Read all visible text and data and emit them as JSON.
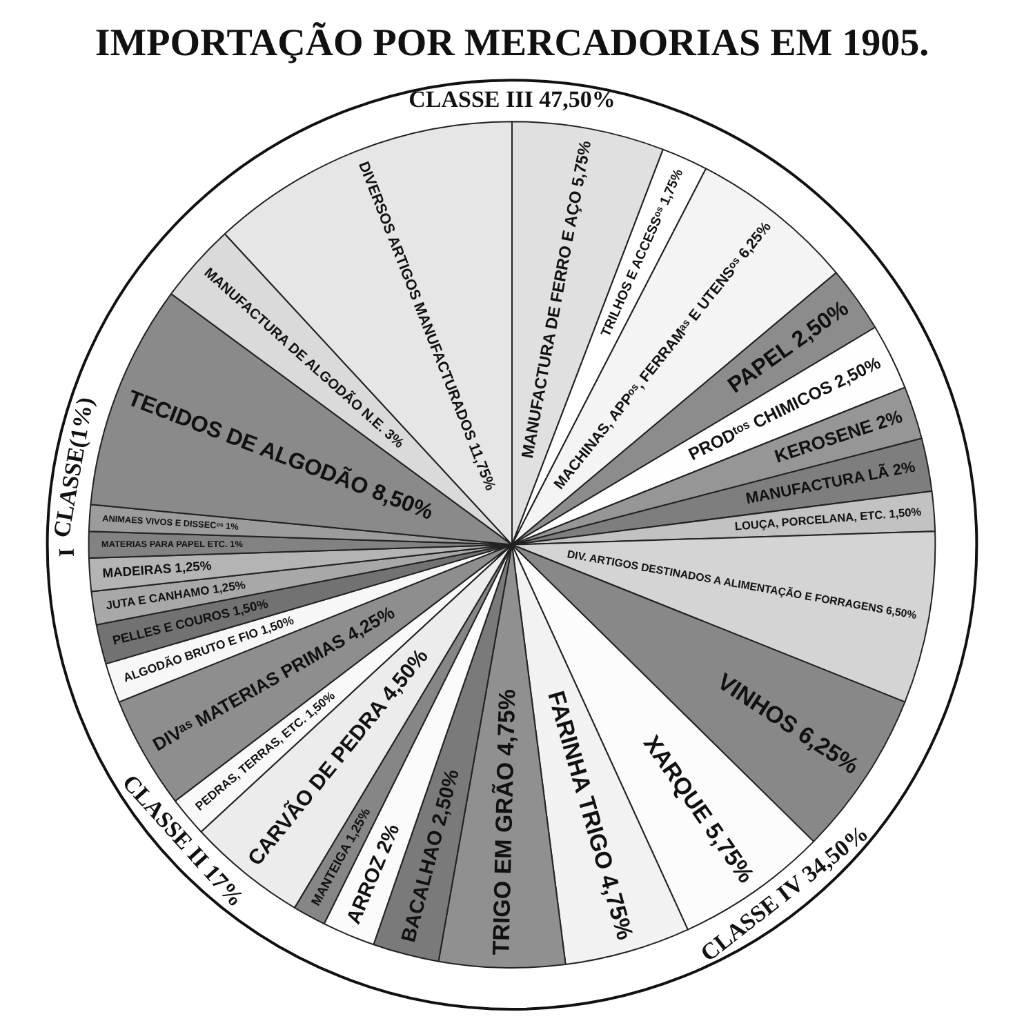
{
  "chart_data": {
    "type": "pie",
    "title": "IMPORTAÇÃO POR MERCADORIAS EM 1905.",
    "categories": [
      "MANUFACTURA DE FERRO E AÇO",
      "TRILHOS E ACCESSᵒˢ",
      "MACHINAS, APPᵒˢ, FERRAMᵃˢ E UTENSᵒˢ",
      "PAPEL",
      "PRODᵗᵒˢ CHIMICOS",
      "KEROSENE",
      "MANUFACTURA LÃ",
      "LOUÇA, PORCELANA, ETC.",
      "DIV. ARTIGOS DESTINADOS A ALIMENTAÇÃO E FORRAGENS",
      "VINHOS",
      "XARQUE",
      "FARINHA TRIGO",
      "TRIGO EM GRÃO",
      "BACALHAO",
      "ARROZ",
      "MANTEIGA",
      "CARVÃO DE PEDRA",
      "PEDRAS, TERRAS, ETC.",
      "DIVᵃˢ MATERIAS PRIMAS",
      "ALGODÃO BRUTO E FIO",
      "PELLES E COUROS",
      "JUTA E CANHAMO",
      "MADEIRAS",
      "MATERIAS PARA PAPEL ETC.",
      "ANIMAES VIVOS E DISSECᵒˢ",
      "TECIDOS DE ALGODÃO",
      "MANUFACTURA DE ALGODÃO N.E.",
      "DIVERSOS ARTIGOS MANUFACTURADOS"
    ],
    "values": [
      5.75,
      1.75,
      6.25,
      2.5,
      2.5,
      2,
      2,
      1.5,
      6.5,
      6.25,
      5.75,
      4.75,
      4.75,
      2.5,
      2,
      1.25,
      4.5,
      1.5,
      4.25,
      1.5,
      1.5,
      1.25,
      1.25,
      1,
      1,
      8.5,
      3,
      11.75
    ],
    "value_labels": [
      "5,75%",
      "1,75%",
      "6,25%",
      "2,50%",
      "2,50%",
      "2%",
      "2%",
      "1,50%",
      "6,50%",
      "6,25%",
      "5,75%",
      "4,75%",
      "4,75%",
      "2,50%",
      "2%",
      "1,25%",
      "4,50%",
      "1,50%",
      "4,25%",
      "1,50%",
      "1,50%",
      "1,25%",
      "1,25%",
      "1%",
      "1%",
      "8,50%",
      "3%",
      "11,75%"
    ],
    "colors": [
      "#e0e0e0",
      "#ffffff",
      "#f4f4f4",
      "#8c8c8c",
      "#fefefe",
      "#969696",
      "#7e7e7e",
      "#c2c2c2",
      "#d4d4d4",
      "#888888",
      "#fcfcfc",
      "#f2f2f2",
      "#909090",
      "#7a7a7a",
      "#fbfbfb",
      "#868686",
      "#ececec",
      "#f9f9f9",
      "#8e8e8e",
      "#f7f7f7",
      "#727272",
      "#a8a8a8",
      "#b4b4b4",
      "#828282",
      "#9c9c9c",
      "#8a8a8a",
      "#dadada",
      "#e6e6e6"
    ],
    "annotations": [
      "CLASSE III 47,50%",
      "CLASSE IV 34,50%",
      "CLASSE II 17%",
      "CLASSE(1%)",
      "I"
    ],
    "legend": false
  }
}
